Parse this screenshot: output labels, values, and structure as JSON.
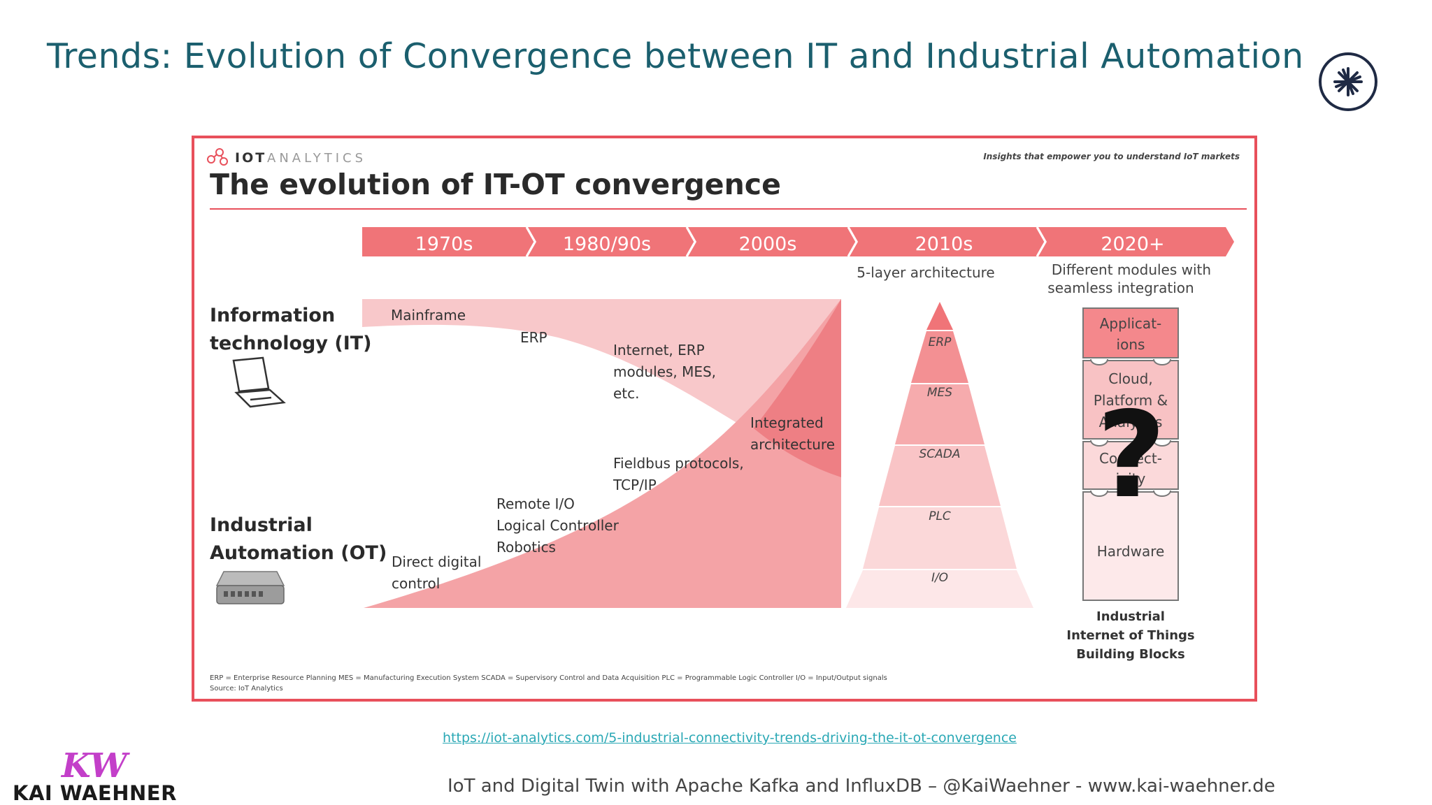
{
  "slide": {
    "title": "Trends: Evolution of Convergence between IT and Industrial Automation",
    "link": "https://iot-analytics.com/5-industrial-connectivity-trends-driving-the-it-ot-convergence",
    "footer": "IoT and Digital Twin with Apache Kafka and InfluxDB – @KaiWaehner - www.kai-waehner.de",
    "brand": "KAI WAEHNER",
    "brand_mark": "KW"
  },
  "figure": {
    "publisher": "IOT",
    "publisher_suffix": "ANALYTICS",
    "tagline": "Insights that empower you to understand IoT markets",
    "title": "The evolution of IT-OT convergence",
    "eras": [
      "1970s",
      "1980/90s",
      "2000s",
      "2010s",
      "2020+"
    ],
    "era_notes": {
      "2010s": "5-layer architecture",
      "2020_line1": "Different modules with",
      "2020_line2": "seamless integration"
    },
    "it_label_line1": "Information",
    "it_label_line2": "technology (IT)",
    "ot_label_line1": "Industrial",
    "ot_label_line2": "Automation (OT)",
    "it_items": {
      "mainframe": "Mainframe",
      "erp": "ERP",
      "internet_1": "Internet, ERP",
      "internet_2": "modules, MES,",
      "internet_3": "etc."
    },
    "ot_items": {
      "ddc_1": "Direct digital",
      "ddc_2": "control",
      "rio_1": "Remote I/O",
      "rio_2": "Logical Controller",
      "rio_3": "Robotics",
      "fb_1": "Fieldbus protocols,",
      "fb_2": "TCP/IP"
    },
    "integrated_1": "Integrated",
    "integrated_2": "architecture",
    "pyramid": [
      "ERP",
      "MES",
      "SCADA",
      "PLC",
      "I/O"
    ],
    "blocks": {
      "app_1": "Applicat-",
      "app_2": "ions",
      "cloud_1": "Cloud,",
      "cloud_2": "Platform &",
      "cloud_3": "Analytics",
      "conn_1": "Connect-",
      "conn_2": "ivity",
      "hardware": "Hardware",
      "question": "?"
    },
    "iiot_1": "Industrial",
    "iiot_2": "Internet of Things",
    "iiot_3": "Building Blocks",
    "footnote": "ERP = Enterprise Resource Planning  MES = Manufacturing Execution System  SCADA = Supervisory Control and Data Acquisition  PLC = Programmable Logic Controller  I/O = Input/Output signals",
    "source": "Source: IoT Analytics"
  },
  "colors": {
    "title": "#1b5f6e",
    "accent_red": "#e8505b",
    "band_pink": "#f4a3a6",
    "band_light": "#f9d3d4",
    "link": "#2aa8b5",
    "brand_purple": "#c33fc9"
  }
}
